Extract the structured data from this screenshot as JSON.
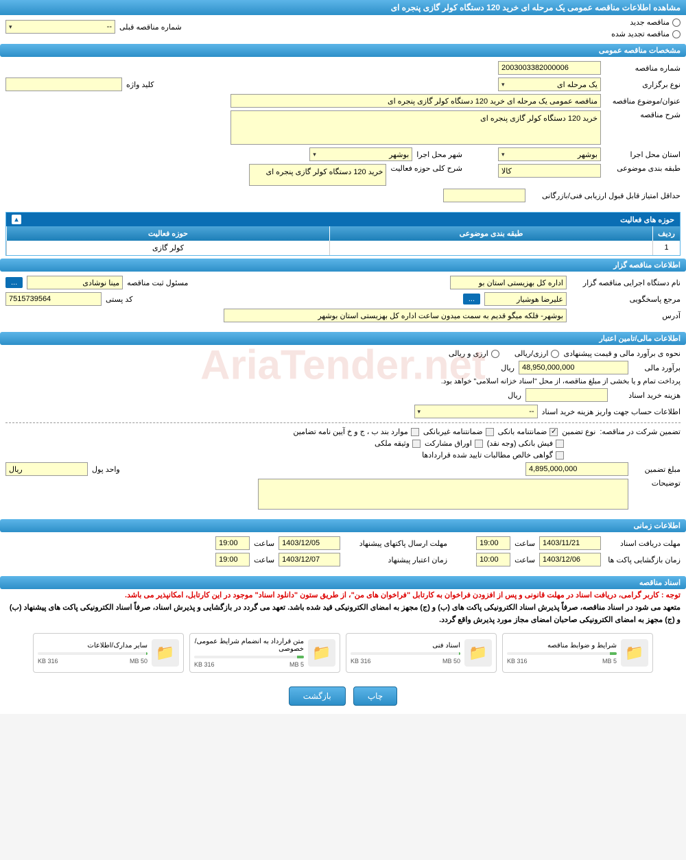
{
  "page": {
    "title": "مشاهده اطلاعات مناقصه عمومی یک مرحله ای خرید 120 دستگاه کولر گازی پنجره ای"
  },
  "tender_type": {
    "option_new": "مناقصه جدید",
    "option_renewed": "مناقصه تجدید شده",
    "prev_label": "شماره مناقصه قبلی",
    "prev_value": "--"
  },
  "sections": {
    "general": "مشخصات مناقصه عمومی",
    "activity": "حوزه های فعالیت",
    "organizer": "اطلاعات مناقصه گزار",
    "financial": "اطلاعات مالی/تامین اعتبار",
    "timing": "اطلاعات زمانی",
    "documents": "اسناد مناقصه"
  },
  "general": {
    "number_label": "شماره مناقصه",
    "number_value": "2003003382000006",
    "type_label": "نوع برگزاری",
    "type_value": "یک مرحله ای",
    "keyword_label": "کلید واژه",
    "keyword_value": "",
    "subject_label": "عنوان/موضوع مناقصه",
    "subject_value": "مناقصه عمومی یک مرحله ای خرید 120 دستگاه کولر گازی پنجره ای",
    "desc_label": "شرح مناقصه",
    "desc_value": "خرید 120 دستگاه کولر گازی پنجره ای",
    "province_label": "استان محل اجرا",
    "province_value": "بوشهر",
    "city_label": "شهر محل اجرا",
    "city_value": "بوشهر",
    "category_label": "طبقه بندی موضوعی",
    "category_value": "کالا",
    "scope_label": "شرح کلی حوزه فعالیت",
    "scope_value": "خرید 120 دستگاه کولر گازی پنجره ای",
    "min_score_label": "حداقل امتیاز قابل قبول ارزیابی فنی/بازرگانی",
    "min_score_value": ""
  },
  "activity_table": {
    "col_row": "ردیف",
    "col_category": "طبقه بندی موضوعی",
    "col_scope": "حوزه فعالیت",
    "rows": [
      {
        "idx": "1",
        "category": "",
        "scope": "کولر گازی"
      }
    ]
  },
  "organizer": {
    "org_label": "نام دستگاه اجرایی مناقصه گزار",
    "org_value": "اداره کل بهزیستی استان بو",
    "registrar_label": "مسئول ثبت مناقصه",
    "registrar_value": "مینا نوشادی",
    "contact_label": "مرجع پاسخگویی",
    "contact_value": "علیرضا هوشیار",
    "postal_label": "کد پستی",
    "postal_value": "7515739564",
    "address_label": "آدرس",
    "address_value": "بوشهر- فلکه میگو قدیم به سمت میدون ساعت اداره کل بهزیستی استان بوشهر",
    "btn_more": "..."
  },
  "financial": {
    "estimate_method_label": "نحوه ی برآورد مالی و قیمت پیشنهادی",
    "option_rialfx": "ارزی/ریالی",
    "option_fxrial": "ارزی و ریالی",
    "estimate_label": "برآورد مالی",
    "estimate_value": "48,950,000,000",
    "currency": "ریال",
    "treasury_note": "پرداخت تمام و یا بخشی از مبلغ مناقصه، از محل \"اسناد خزانه اسلامی\" خواهد بود.",
    "doc_fee_label": "هزینه خرید اسناد",
    "doc_fee_value": "",
    "doc_fee_currency": "ریال",
    "account_label": "اطلاعات حساب جهت واریز هزینه خرید اسناد",
    "account_value": "--",
    "guarantee_label": "تضمین شرکت در مناقصه:",
    "guarantee_type_label": "نوع تضمین",
    "chk_bank": "ضمانتنامه بانکی",
    "chk_nonbank": "ضمانتنامه غیربانکی",
    "chk_bylaw": "موارد بند ب ، ج و خ آیین نامه تضامین",
    "chk_cash": "فیش بانکی (وجه نقد)",
    "chk_bonds": "اوراق مشارکت",
    "chk_property": "وثیقه ملکی",
    "chk_receivables": "گواهی خالص مطالبات تایید شده قراردادها",
    "guarantee_amount_label": "مبلغ تضمین",
    "guarantee_amount_value": "4,895,000,000",
    "unit_label": "واحد پول",
    "unit_value": "ریال",
    "remarks_label": "توضیحات",
    "remarks_value": ""
  },
  "timing": {
    "receive_label": "مهلت دریافت اسناد",
    "receive_date": "1403/11/21",
    "receive_time_label": "ساعت",
    "receive_time": "19:00",
    "send_label": "مهلت ارسال پاکتهای پیشنهاد",
    "send_date": "1403/12/05",
    "send_time_label": "ساعت",
    "send_time": "19:00",
    "open_label": "زمان بازگشایی پاکت ها",
    "open_date": "1403/12/06",
    "open_time_label": "ساعت",
    "open_time": "10:00",
    "validity_label": "زمان اعتبار پیشنهاد",
    "validity_date": "1403/12/07",
    "validity_time_label": "ساعت",
    "validity_time": "19:00"
  },
  "documents": {
    "note_red": "توجه : کاربر گرامی، دریافت اسناد در مهلت قانونی و پس از افزودن فراخوان به کارتابل \"فراخوان های من\"، از طریق ستون \"دانلود اسناد\" موجود در این کارتابل، امکانپذیر می باشد.",
    "note_black": "متعهد می شود در اسناد مناقصه، صرفاً پذیرش اسناد الکترونیکی پاکت های (ب) و (ج) مجهز به امضای الکترونیکی قید شده باشد. تعهد می گردد در بازگشایی و پذیرش اسناد، صرفاً اسناد الکترونیکی پاکت های پیشنهاد (ب) و (ج) مجهز به امضای الکترونیکی صاحبان امضای مجاز مورد پذیرش واقع گردد.",
    "files": [
      {
        "name": "شرایط و ضوابط مناقصه",
        "used": "316 KB",
        "limit": "5 MB",
        "pct": 6
      },
      {
        "name": "اسناد فنی",
        "used": "316 KB",
        "limit": "50 MB",
        "pct": 1
      },
      {
        "name": "متن قرارداد به انضمام شرایط عمومی/خصوصی",
        "used": "316 KB",
        "limit": "5 MB",
        "pct": 6
      },
      {
        "name": "سایر مدارک/اطلاعات",
        "used": "316 KB",
        "limit": "50 MB",
        "pct": 1
      }
    ]
  },
  "buttons": {
    "print": "چاپ",
    "back": "بازگشت"
  },
  "watermark": "AriaTender.net",
  "colors": {
    "header_grad_top": "#5cb5e8",
    "header_grad_bottom": "#2d8fc8",
    "input_bg": "#ffffcc",
    "note_red": "#d00",
    "bar_fill": "#5cb85c"
  }
}
